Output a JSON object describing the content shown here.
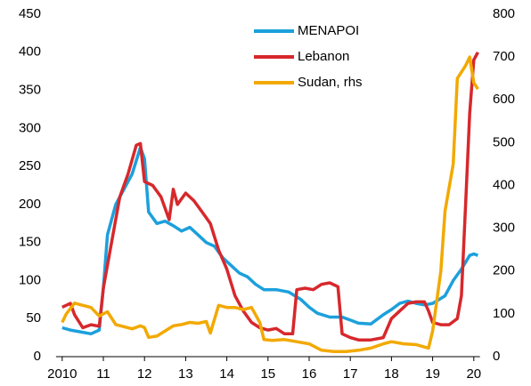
{
  "chart_data": {
    "type": "line",
    "xlim": [
      2009.85,
      2020.15
    ],
    "xticks": [
      {
        "value": 2010,
        "label": "2010"
      },
      {
        "value": 2011,
        "label": "11"
      },
      {
        "value": 2012,
        "label": "12"
      },
      {
        "value": 2013,
        "label": "13"
      },
      {
        "value": 2014,
        "label": "14"
      },
      {
        "value": 2015,
        "label": "15"
      },
      {
        "value": 2016,
        "label": "16"
      },
      {
        "value": 2017,
        "label": "17"
      },
      {
        "value": 2018,
        "label": "18"
      },
      {
        "value": 2019,
        "label": "19"
      },
      {
        "value": 2020,
        "label": "20"
      }
    ],
    "ylim": [
      0,
      450
    ],
    "yticks": [
      0,
      50,
      100,
      150,
      200,
      250,
      300,
      350,
      400,
      450
    ],
    "y2lim": [
      0,
      800
    ],
    "y2ticks": [
      0,
      100,
      200,
      300,
      400,
      500,
      600,
      700,
      800
    ],
    "legend": "top",
    "series": [
      {
        "name": "MENAPOI",
        "color": "#1ca0dc",
        "x": [
          2010.0,
          2010.2,
          2010.5,
          2010.7,
          2010.9,
          2011.0,
          2011.1,
          2011.3,
          2011.5,
          2011.7,
          2011.9,
          2012.0,
          2012.1,
          2012.3,
          2012.5,
          2012.7,
          2012.9,
          2013.1,
          2013.3,
          2013.5,
          2013.7,
          2013.9,
          2014.1,
          2014.3,
          2014.5,
          2014.7,
          2014.9,
          2015.2,
          2015.5,
          2015.8,
          2016.0,
          2016.2,
          2016.5,
          2016.8,
          2017.0,
          2017.2,
          2017.5,
          2017.8,
          2018.0,
          2018.2,
          2018.4,
          2018.6,
          2018.8,
          2019.0,
          2019.3,
          2019.5,
          2019.7,
          2019.9,
          2020.0,
          2020.1
        ],
        "values": [
          38,
          35,
          32,
          30,
          35,
          90,
          160,
          200,
          220,
          240,
          275,
          260,
          190,
          175,
          178,
          172,
          165,
          170,
          160,
          150,
          145,
          130,
          120,
          110,
          105,
          95,
          88,
          88,
          85,
          75,
          65,
          57,
          52,
          52,
          48,
          44,
          43,
          55,
          62,
          70,
          73,
          70,
          68,
          70,
          80,
          100,
          115,
          133,
          135,
          133
        ]
      },
      {
        "name": "Lebanon",
        "color": "#d7282c",
        "x": [
          2010.0,
          2010.2,
          2010.3,
          2010.5,
          2010.7,
          2010.9,
          2011.0,
          2011.2,
          2011.4,
          2011.6,
          2011.8,
          2011.9,
          2012.0,
          2012.2,
          2012.4,
          2012.6,
          2012.7,
          2012.8,
          2013.0,
          2013.2,
          2013.4,
          2013.6,
          2013.8,
          2014.0,
          2014.2,
          2014.4,
          2014.6,
          2014.8,
          2015.0,
          2015.2,
          2015.4,
          2015.6,
          2015.7,
          2015.9,
          2016.1,
          2016.3,
          2016.5,
          2016.7,
          2016.8,
          2017.0,
          2017.2,
          2017.5,
          2017.8,
          2018.0,
          2018.2,
          2018.4,
          2018.6,
          2018.8,
          2018.9,
          2019.0,
          2019.2,
          2019.4,
          2019.6,
          2019.7,
          2019.8,
          2019.9,
          2020.0,
          2020.1
        ],
        "values": [
          65,
          70,
          55,
          38,
          42,
          40,
          90,
          150,
          210,
          240,
          278,
          280,
          230,
          225,
          210,
          180,
          220,
          200,
          215,
          205,
          190,
          175,
          140,
          115,
          80,
          60,
          45,
          38,
          35,
          37,
          30,
          30,
          88,
          90,
          88,
          95,
          97,
          92,
          30,
          25,
          22,
          22,
          25,
          50,
          60,
          70,
          72,
          72,
          60,
          45,
          42,
          42,
          50,
          80,
          200,
          320,
          390,
          400
        ]
      },
      {
        "name": "Sudan, rhs",
        "color": "#f2a900",
        "axis": "y2",
        "x": [
          2010.0,
          2010.1,
          2010.3,
          2010.5,
          2010.7,
          2010.9,
          2011.1,
          2011.3,
          2011.5,
          2011.7,
          2011.9,
          2012.0,
          2012.1,
          2012.3,
          2012.5,
          2012.7,
          2012.9,
          2013.1,
          2013.3,
          2013.5,
          2013.6,
          2013.8,
          2014.0,
          2014.2,
          2014.4,
          2014.6,
          2014.8,
          2014.9,
          2015.1,
          2015.4,
          2015.7,
          2016.0,
          2016.3,
          2016.6,
          2016.9,
          2017.2,
          2017.5,
          2017.8,
          2018.0,
          2018.3,
          2018.6,
          2018.9,
          2019.0,
          2019.2,
          2019.3,
          2019.5,
          2019.6,
          2019.8,
          2019.9,
          2020.0,
          2020.1
        ],
        "values": [
          80,
          100,
          125,
          120,
          115,
          95,
          105,
          75,
          70,
          65,
          72,
          68,
          45,
          48,
          60,
          72,
          75,
          80,
          78,
          82,
          55,
          120,
          115,
          115,
          110,
          115,
          80,
          40,
          38,
          40,
          35,
          30,
          15,
          12,
          12,
          15,
          20,
          30,
          35,
          30,
          28,
          20,
          60,
          200,
          340,
          450,
          650,
          680,
          700,
          640,
          625
        ]
      }
    ]
  }
}
